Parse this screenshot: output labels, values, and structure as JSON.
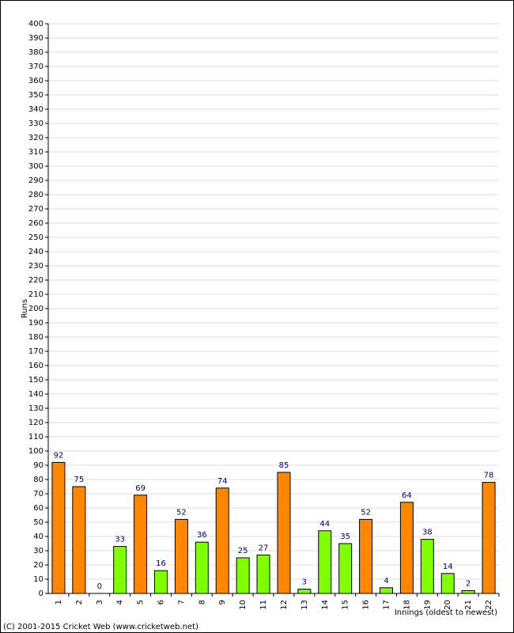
{
  "chart_data": {
    "type": "bar",
    "y_label": "Runs",
    "x_label": "Innings (oldest to newest)",
    "footer": "(C) 2001-2015 Cricket Web (www.cricketweb.net)",
    "categories": [
      "1",
      "2",
      "3",
      "4",
      "5",
      "6",
      "7",
      "8",
      "9",
      "10",
      "11",
      "12",
      "13",
      "14",
      "15",
      "16",
      "17",
      "18",
      "19",
      "20",
      "21",
      "22"
    ],
    "values": [
      92,
      75,
      0,
      33,
      69,
      16,
      52,
      36,
      74,
      25,
      27,
      85,
      3,
      44,
      35,
      52,
      4,
      64,
      38,
      14,
      2,
      78
    ],
    "colors": [
      "#ff8800",
      "#ff8800",
      "#ff8800",
      "#80ff00",
      "#ff8800",
      "#80ff00",
      "#ff8800",
      "#80ff00",
      "#ff8800",
      "#80ff00",
      "#80ff00",
      "#ff8800",
      "#80ff00",
      "#80ff00",
      "#80ff00",
      "#ff8800",
      "#80ff00",
      "#ff8800",
      "#80ff00",
      "#80ff00",
      "#80ff00",
      "#ff8800"
    ],
    "ylim": [
      0,
      400
    ],
    "yticks": [
      0,
      10,
      20,
      30,
      40,
      50,
      60,
      70,
      80,
      90,
      100,
      110,
      120,
      130,
      140,
      150,
      160,
      170,
      180,
      190,
      200,
      210,
      220,
      230,
      240,
      250,
      260,
      270,
      280,
      290,
      300,
      310,
      320,
      330,
      340,
      350,
      360,
      370,
      380,
      390,
      400
    ],
    "grid": true
  }
}
